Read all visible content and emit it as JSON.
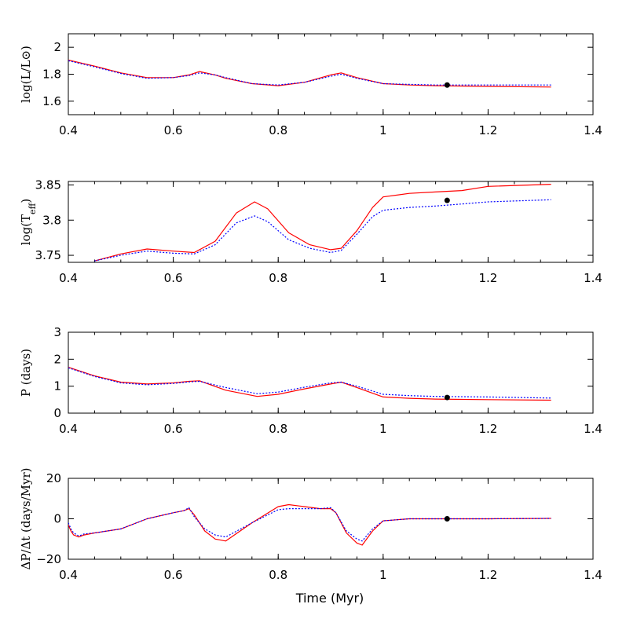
{
  "chart_data": [
    {
      "type": "line",
      "ylabel": "log(L/L⊙)",
      "xlim": [
        0.4,
        1.4
      ],
      "ylim": [
        1.5,
        2.1
      ],
      "xticks": [
        0.4,
        0.6,
        0.8,
        1.0,
        1.2,
        1.4
      ],
      "xtick_labels": [
        "0.4",
        "0.6",
        "0.8",
        "1",
        "1.2",
        "1.4"
      ],
      "yticks": [
        1.6,
        1.8,
        2.0
      ],
      "ytick_labels": [
        "1.6",
        "1.8",
        "2"
      ],
      "series": [
        {
          "style": "solid",
          "color": "#ff0000",
          "x": [
            0.4,
            0.45,
            0.5,
            0.55,
            0.6,
            0.63,
            0.65,
            0.68,
            0.7,
            0.75,
            0.8,
            0.85,
            0.9,
            0.92,
            0.95,
            1.0,
            1.05,
            1.1,
            1.2,
            1.32
          ],
          "y": [
            1.905,
            1.86,
            1.81,
            1.775,
            1.775,
            1.795,
            1.82,
            1.795,
            1.77,
            1.73,
            1.715,
            1.74,
            1.795,
            1.81,
            1.775,
            1.73,
            1.72,
            1.715,
            1.71,
            1.705
          ]
        },
        {
          "style": "dotted",
          "color": "#0000ff",
          "x": [
            0.4,
            0.45,
            0.5,
            0.55,
            0.6,
            0.63,
            0.65,
            0.68,
            0.7,
            0.75,
            0.8,
            0.85,
            0.9,
            0.92,
            0.95,
            1.0,
            1.05,
            1.1,
            1.2,
            1.32
          ],
          "y": [
            1.9,
            1.855,
            1.805,
            1.77,
            1.775,
            1.79,
            1.81,
            1.795,
            1.775,
            1.73,
            1.72,
            1.74,
            1.785,
            1.8,
            1.77,
            1.73,
            1.725,
            1.72,
            1.72,
            1.72
          ]
        }
      ],
      "marker": {
        "x": 1.122,
        "y": 1.72
      }
    },
    {
      "type": "line",
      "ylabel": "log(T_eff)",
      "xlim": [
        0.4,
        1.4
      ],
      "ylim": [
        3.74,
        3.855
      ],
      "xticks": [
        0.4,
        0.6,
        0.8,
        1.0,
        1.2,
        1.4
      ],
      "xtick_labels": [
        "0.4",
        "0.6",
        "0.8",
        "1",
        "1.2",
        "1.4"
      ],
      "yticks": [
        3.75,
        3.8,
        3.85
      ],
      "ytick_labels": [
        "3.75",
        "3.8",
        "3.85"
      ],
      "series": [
        {
          "style": "solid",
          "color": "#ff0000",
          "x": [
            0.45,
            0.5,
            0.55,
            0.6,
            0.64,
            0.68,
            0.72,
            0.755,
            0.78,
            0.82,
            0.86,
            0.9,
            0.92,
            0.95,
            0.98,
            1.0,
            1.05,
            1.1,
            1.15,
            1.2,
            1.32
          ],
          "y": [
            3.742,
            3.752,
            3.759,
            3.756,
            3.754,
            3.77,
            3.81,
            3.826,
            3.816,
            3.782,
            3.765,
            3.758,
            3.76,
            3.785,
            3.818,
            3.833,
            3.838,
            3.84,
            3.842,
            3.848,
            3.851
          ]
        },
        {
          "style": "dotted",
          "color": "#0000ff",
          "x": [
            0.45,
            0.5,
            0.55,
            0.6,
            0.64,
            0.68,
            0.72,
            0.755,
            0.78,
            0.82,
            0.86,
            0.9,
            0.92,
            0.95,
            0.98,
            1.0,
            1.05,
            1.1,
            1.15,
            1.2,
            1.32
          ],
          "y": [
            3.742,
            3.75,
            3.756,
            3.753,
            3.752,
            3.765,
            3.796,
            3.806,
            3.798,
            3.772,
            3.76,
            3.754,
            3.757,
            3.78,
            3.805,
            3.814,
            3.818,
            3.82,
            3.823,
            3.826,
            3.829
          ]
        }
      ],
      "marker": {
        "x": 1.122,
        "y": 3.828
      }
    },
    {
      "type": "line",
      "ylabel": "P (days)",
      "xlim": [
        0.4,
        1.4
      ],
      "ylim": [
        0,
        3
      ],
      "xticks": [
        0.4,
        0.6,
        0.8,
        1.0,
        1.2,
        1.4
      ],
      "xtick_labels": [
        "0.4",
        "0.6",
        "0.8",
        "1",
        "1.2",
        "1.4"
      ],
      "yticks": [
        0,
        1,
        2,
        3
      ],
      "ytick_labels": [
        "0",
        "1",
        "2",
        "3"
      ],
      "series": [
        {
          "style": "solid",
          "color": "#ff0000",
          "x": [
            0.4,
            0.45,
            0.5,
            0.55,
            0.6,
            0.63,
            0.65,
            0.7,
            0.76,
            0.8,
            0.85,
            0.9,
            0.92,
            0.95,
            1.0,
            1.05,
            1.1,
            1.2,
            1.32
          ],
          "y": [
            1.7,
            1.38,
            1.15,
            1.08,
            1.12,
            1.18,
            1.2,
            0.85,
            0.62,
            0.7,
            0.9,
            1.08,
            1.15,
            0.95,
            0.6,
            0.55,
            0.52,
            0.5,
            0.48
          ]
        },
        {
          "style": "dotted",
          "color": "#0000ff",
          "x": [
            0.4,
            0.45,
            0.5,
            0.55,
            0.6,
            0.63,
            0.65,
            0.7,
            0.76,
            0.8,
            0.85,
            0.9,
            0.92,
            0.95,
            1.0,
            1.05,
            1.1,
            1.2,
            1.32
          ],
          "y": [
            1.68,
            1.36,
            1.12,
            1.05,
            1.1,
            1.16,
            1.18,
            0.95,
            0.72,
            0.78,
            0.96,
            1.12,
            1.15,
            1.0,
            0.7,
            0.65,
            0.62,
            0.6,
            0.56
          ]
        }
      ],
      "marker": {
        "x": 1.122,
        "y": 0.58
      }
    },
    {
      "type": "line",
      "ylabel": "ΔP/Δt (days/Myr)",
      "xlabel": "Time (Myr)",
      "xlim": [
        0.4,
        1.4
      ],
      "ylim": [
        -20,
        20
      ],
      "xticks": [
        0.4,
        0.6,
        0.8,
        1.0,
        1.2,
        1.4
      ],
      "xtick_labels": [
        "0.4",
        "0.6",
        "0.8",
        "1",
        "1.2",
        "1.4"
      ],
      "yticks": [
        -20,
        0,
        20
      ],
      "ytick_labels": [
        "−20",
        "0",
        "20"
      ],
      "series": [
        {
          "style": "solid",
          "color": "#ff0000",
          "x": [
            0.4,
            0.405,
            0.41,
            0.42,
            0.43,
            0.45,
            0.5,
            0.55,
            0.6,
            0.62,
            0.63,
            0.64,
            0.66,
            0.68,
            0.7,
            0.75,
            0.8,
            0.82,
            0.85,
            0.88,
            0.9,
            0.91,
            0.93,
            0.95,
            0.96,
            0.98,
            1.0,
            1.05,
            1.1,
            1.2,
            1.32
          ],
          "y": [
            -3,
            -6,
            -8,
            -9,
            -8,
            -7,
            -5,
            0,
            3,
            4,
            5,
            2,
            -6,
            -10,
            -11,
            -2,
            6,
            7,
            6,
            5,
            5,
            3,
            -7,
            -12,
            -13,
            -6,
            -1,
            0,
            0,
            0,
            0.2
          ]
        },
        {
          "style": "dotted",
          "color": "#0000ff",
          "x": [
            0.4,
            0.405,
            0.41,
            0.42,
            0.43,
            0.45,
            0.5,
            0.55,
            0.6,
            0.62,
            0.63,
            0.64,
            0.66,
            0.68,
            0.7,
            0.75,
            0.8,
            0.82,
            0.85,
            0.88,
            0.9,
            0.91,
            0.93,
            0.95,
            0.96,
            0.98,
            1.0,
            1.05,
            1.1,
            1.2,
            1.32
          ],
          "y": [
            -2,
            -5,
            -7,
            -8.5,
            -7.5,
            -7,
            -5,
            0,
            3,
            4,
            5.5,
            1,
            -5,
            -8,
            -9,
            -2,
            4.5,
            5,
            5,
            5,
            5.5,
            3,
            -6,
            -10,
            -11,
            -5,
            -1,
            0,
            0,
            0,
            0.2
          ]
        }
      ],
      "marker": {
        "x": 1.122,
        "y": 0
      }
    }
  ],
  "colors": {
    "model_solid": "#ff0000",
    "model_dotted": "#0000ff",
    "marker": "#000000",
    "axis": "#000000"
  }
}
